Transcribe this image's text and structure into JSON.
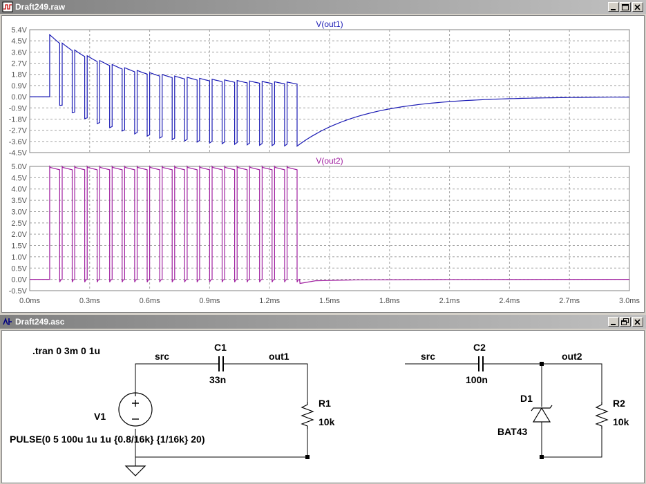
{
  "plot_window": {
    "title": "Draft249.raw",
    "panes": [
      {
        "trace_name": "V(out1)",
        "y_ticks": [
          "5.4V",
          "4.5V",
          "3.6V",
          "2.7V",
          "1.8V",
          "0.9V",
          "0.0V",
          "-0.9V",
          "-1.8V",
          "-2.7V",
          "-3.6V",
          "-4.5V"
        ]
      },
      {
        "trace_name": "V(out2)",
        "y_ticks": [
          "5.0V",
          "4.5V",
          "4.0V",
          "3.5V",
          "3.0V",
          "2.5V",
          "2.0V",
          "1.5V",
          "1.0V",
          "0.5V",
          "0.0V",
          "-0.5V"
        ]
      }
    ],
    "x_ticks": [
      "0.0ms",
      "0.3ms",
      "0.6ms",
      "0.9ms",
      "1.2ms",
      "1.5ms",
      "1.8ms",
      "2.1ms",
      "2.4ms",
      "2.7ms",
      "3.0ms"
    ]
  },
  "chart_data": [
    {
      "type": "line",
      "title": "V(out1)",
      "xlim": [
        0,
        3.0
      ],
      "ylim": [
        -4.5,
        5.4
      ],
      "x_unit": "ms",
      "y_unit": "V",
      "grid": true,
      "color": "#1a1ab4",
      "series": [
        {
          "name": "V(out1)",
          "x": [
            0,
            0.1,
            0.1,
            0.15,
            0.162,
            0.22,
            1.275,
            1.35,
            1.35,
            1.6,
            2.0,
            2.5,
            3.0
          ],
          "values": [
            0,
            0,
            5.0,
            4.3,
            -0.7,
            3.6,
            1.0,
            0.9,
            -4.1,
            -1.8,
            -0.6,
            -0.15,
            0.0
          ]
        }
      ]
    },
    {
      "type": "line",
      "title": "V(out2)",
      "xlim": [
        0,
        3.0
      ],
      "ylim": [
        -0.5,
        5.0
      ],
      "x_unit": "ms",
      "y_unit": "V",
      "grid": true,
      "color": "#a020a0",
      "series": [
        {
          "name": "V(out2)",
          "x": [
            0,
            0.1,
            0.1,
            0.15,
            0.162,
            1.35,
            1.35,
            1.5,
            2.1,
            3.0
          ],
          "values": [
            0,
            0,
            5.0,
            4.9,
            -0.1,
            4.9,
            -0.15,
            -0.03,
            0.0,
            0.0
          ]
        }
      ]
    }
  ],
  "schematic_window": {
    "title": "Draft249.asc",
    "directive": ".tran 0 3m 0 1u",
    "nets": {
      "src_left": "src",
      "out1": "out1",
      "src_right": "src",
      "out2": "out2"
    },
    "components": {
      "c1_name": "C1",
      "c1_value": "33n",
      "r1_name": "R1",
      "r1_value": "10k",
      "v1_name": "V1",
      "v1_value": "PULSE(0 5 100u 1u 1u {0.8/16k} {1/16k} 20)",
      "c2_name": "C2",
      "c2_value": "100n",
      "d1_name": "D1",
      "d1_value": "BAT43",
      "r2_name": "R2",
      "r2_value": "10k"
    }
  },
  "colors": {
    "trace1": "#1a1ab4",
    "trace2": "#a020a0",
    "grid": "#a0a0a0",
    "axis_text": "#505050"
  }
}
